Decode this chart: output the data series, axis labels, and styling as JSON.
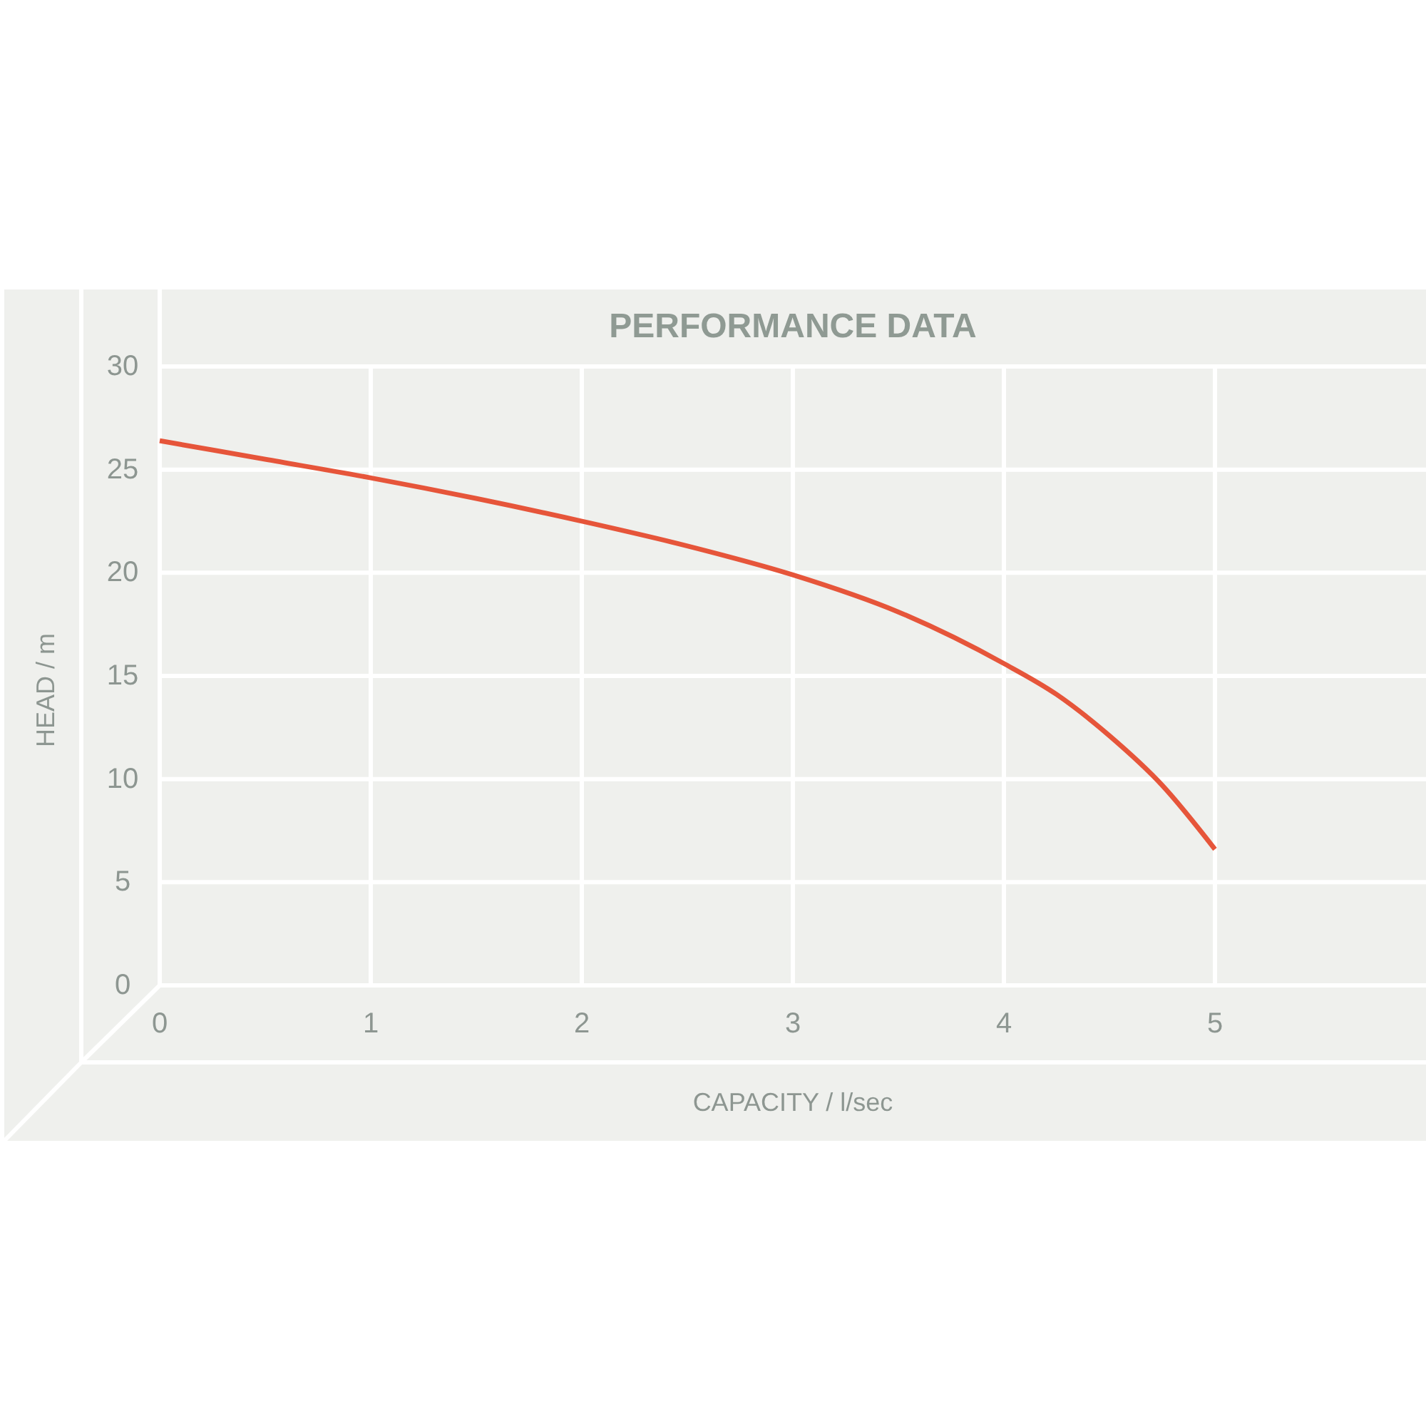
{
  "chart_data": {
    "type": "line",
    "title": "PERFORMANCE DATA",
    "xlabel": "CAPACITY / l/sec",
    "ylabel": "HEAD / m",
    "x": [
      0,
      0.5,
      1,
      1.5,
      2,
      2.5,
      3,
      3.5,
      4,
      4.25,
      4.5,
      4.75,
      5
    ],
    "series": [
      {
        "color": "#e6553a",
        "values": [
          26.4,
          25.5,
          24.6,
          23.6,
          22.5,
          21.3,
          19.9,
          18.1,
          15.6,
          14.1,
          12.1,
          9.7,
          6.6
        ]
      }
    ],
    "xlim": [
      0,
      6
    ],
    "xticks": [
      0,
      1,
      2,
      3,
      4,
      5
    ],
    "ylim": [
      0,
      30
    ],
    "yticks": [
      0,
      5,
      10,
      15,
      20,
      25,
      30
    ],
    "grid": true,
    "line_style": "solid"
  }
}
